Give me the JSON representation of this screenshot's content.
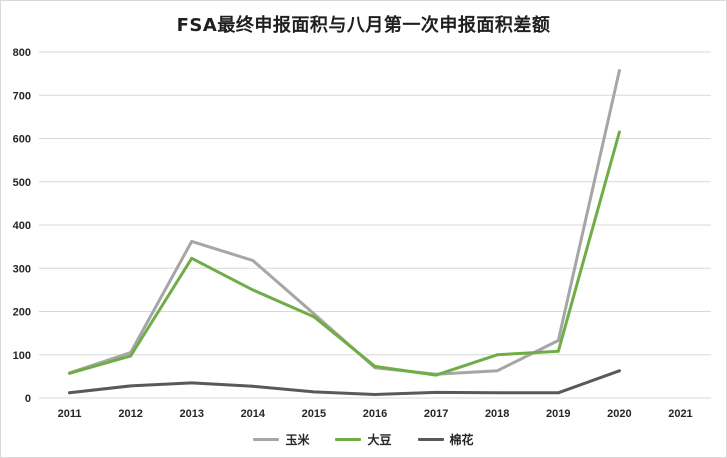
{
  "chart_data": {
    "type": "line",
    "title": "FSA最终申报面积与八月第一次申报面积差额",
    "x": [
      "2011",
      "2012",
      "2013",
      "2014",
      "2015",
      "2016",
      "2017",
      "2018",
      "2019",
      "2020",
      "2021"
    ],
    "ylim": [
      0,
      800
    ],
    "yticks": [
      0,
      100,
      200,
      300,
      400,
      500,
      600,
      700,
      800
    ],
    "grid": true,
    "legend_position": "bottom",
    "series": [
      {
        "name": "玉米",
        "color": "#a6a6a6",
        "values": [
          58,
          105,
          362,
          318,
          195,
          70,
          55,
          63,
          133,
          757,
          null
        ]
      },
      {
        "name": "大豆",
        "color": "#70ad47",
        "values": [
          57,
          97,
          323,
          250,
          188,
          73,
          53,
          100,
          108,
          615,
          null
        ]
      },
      {
        "name": "棉花",
        "color": "#595959",
        "values": [
          12,
          28,
          35,
          27,
          14,
          8,
          13,
          12,
          12,
          63,
          null
        ]
      }
    ]
  }
}
